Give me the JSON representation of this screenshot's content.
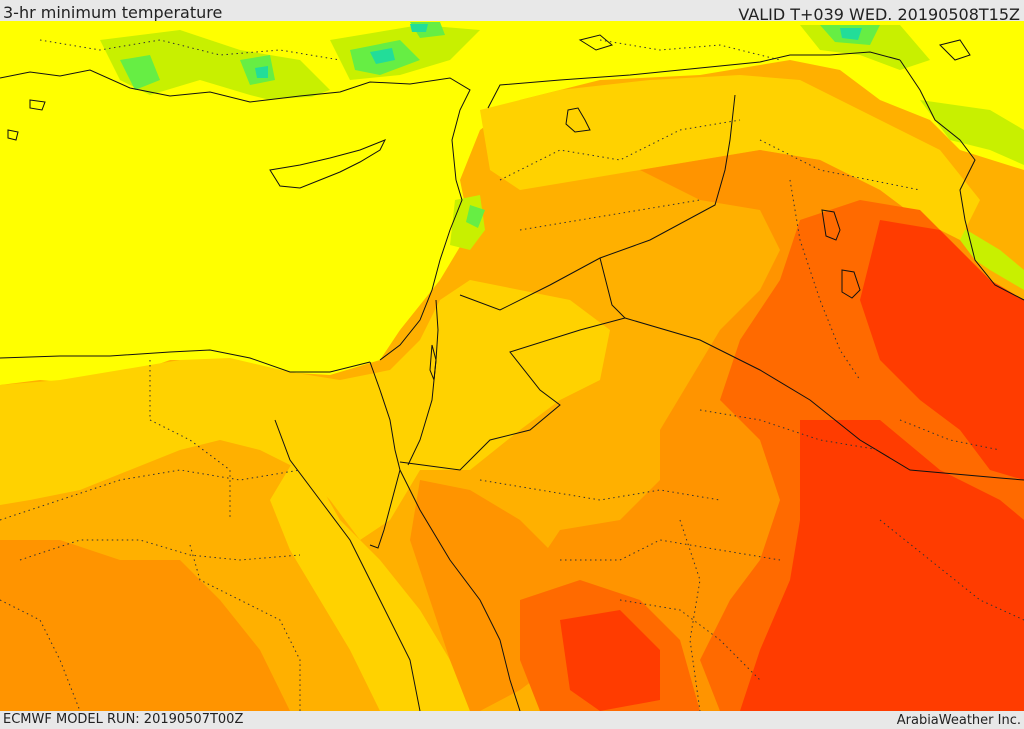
{
  "header": {
    "title": "3-hr minimum temperature",
    "valid": "VALID T+039 WED. 20190508T15Z"
  },
  "footer": {
    "model_run": "ECMWF MODEL RUN: 20190507T00Z",
    "credit": "ArabiaWeather Inc."
  },
  "colors": {
    "green_light": "#c8f000",
    "green": "#66ee44",
    "cyan": "#22dd99",
    "yellow": "#ffff00",
    "yellow_deep": "#ffe000",
    "gold": "#ffd200",
    "amber": "#ffb000",
    "orange": "#ff9400",
    "orange_red": "#ff6a00",
    "red": "#ff3c00",
    "border": "#111111"
  }
}
